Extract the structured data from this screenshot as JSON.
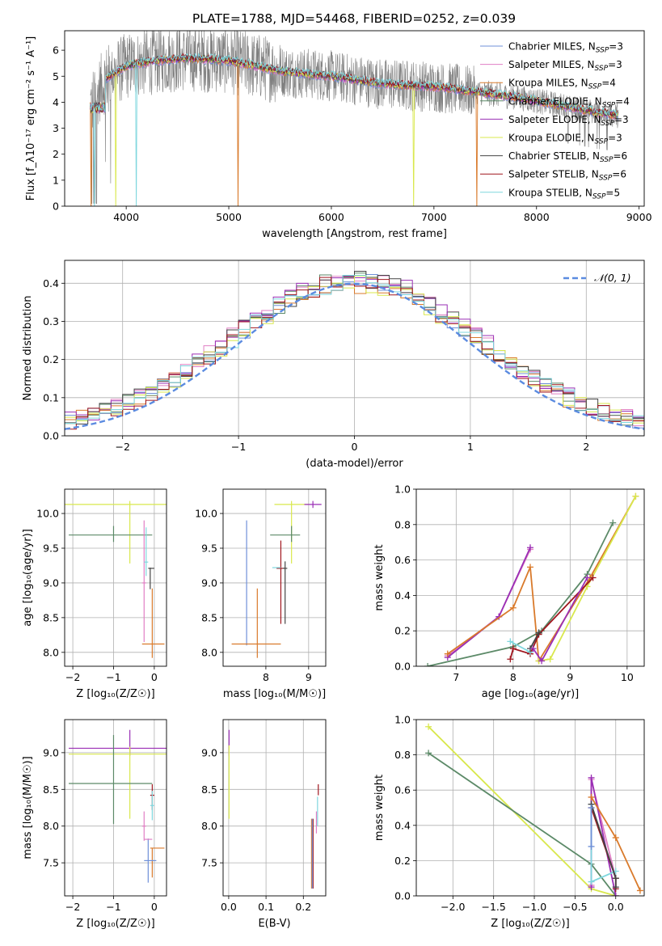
{
  "title": "PLATE=1788, MJD=54468, FIBERID=0252, z=0.039",
  "colors": {
    "Chabrier MILES": "#6f90d8",
    "Salpeter MILES": "#e07fc4",
    "Kroupa MILES": "#d97a2b",
    "Chabrier ELODIE": "#5c8a68",
    "Salpeter ELODIE": "#9a2fb5",
    "Kroupa ELODIE": "#d9e84d",
    "Chabrier STELIB": "#444444",
    "Salpeter STELIB": "#a0161e",
    "Kroupa STELIB": "#7fd7de",
    "spectrum": "#7f7f7f",
    "normal": "#5b8be0"
  },
  "chart_data": [
    {
      "type": "line",
      "xlabel": "wavelength [Angstrom, rest frame]",
      "ylabel": "Flux [f_λ10⁻¹⁷ erg cm⁻² s⁻¹ A⁻¹]",
      "xlim": [
        3400,
        9050
      ],
      "ylim": [
        0,
        6.75
      ],
      "xticks": [
        4000,
        5000,
        6000,
        7000,
        8000,
        9000
      ],
      "yticks": [
        0,
        1,
        2,
        3,
        4,
        5,
        6
      ],
      "grid": false,
      "legend_position": "right",
      "legend": [
        {
          "label": "Chabrier MILES, N",
          "sub": "SSP",
          "suffix": "=3",
          "model": "Chabrier MILES"
        },
        {
          "label": "Salpeter MILES, N",
          "sub": "SSP",
          "suffix": "=3",
          "model": "Salpeter MILES"
        },
        {
          "label": "Kroupa MILES, N",
          "sub": "SSP",
          "suffix": "=4",
          "model": "Kroupa MILES"
        },
        {
          "label": "Chabrier ELODIE, N",
          "sub": "SSP",
          "suffix": "=4",
          "model": "Chabrier ELODIE"
        },
        {
          "label": "Salpeter ELODIE, N",
          "sub": "SSP",
          "suffix": "=3",
          "model": "Salpeter ELODIE"
        },
        {
          "label": "Kroupa ELODIE, N",
          "sub": "SSP",
          "suffix": "=3",
          "model": "Kroupa ELODIE"
        },
        {
          "label": "Chabrier STELIB, N",
          "sub": "SSP",
          "suffix": "=6",
          "model": "Chabrier STELIB"
        },
        {
          "label": "Salpeter STELIB, N",
          "sub": "SSP",
          "suffix": "=6",
          "model": "Salpeter STELIB"
        },
        {
          "label": "Kroupa STELIB, N",
          "sub": "SSP",
          "suffix": "=5",
          "model": "Kroupa STELIB"
        }
      ],
      "spectrum_envelope": {
        "x": [
          3650,
          3800,
          4000,
          4300,
          4600,
          5000,
          5500,
          6000,
          6500,
          7000,
          7400,
          7800,
          8200,
          8600,
          8800
        ],
        "y": [
          3.9,
          4.9,
          5.4,
          5.6,
          5.7,
          5.6,
          5.2,
          5.0,
          4.7,
          4.6,
          4.4,
          4.2,
          3.9,
          3.6,
          3.5
        ]
      },
      "model_drops": [
        {
          "model": "Kroupa MILES",
          "x": [
            3660,
            5090,
            7420
          ]
        },
        {
          "model": "Kroupa ELODIE",
          "x": [
            3900,
            6800
          ]
        },
        {
          "model": "Kroupa STELIB",
          "x": [
            3690,
            4100
          ]
        }
      ]
    },
    {
      "type": "step",
      "xlabel": "(data-model)/error",
      "ylabel": "Normed distribution",
      "xlim": [
        -2.5,
        2.5
      ],
      "ylim": [
        0,
        0.46
      ],
      "xticks": [
        -2,
        -1,
        0,
        1,
        2
      ],
      "yticks": [
        0.0,
        0.1,
        0.2,
        0.3,
        0.4
      ],
      "grid": true,
      "legend_position": "top-right",
      "normal_label": "𝒩(0, 1)",
      "bin_width": 0.1,
      "series_peak": [
        0.395,
        0.405,
        0.385,
        0.4,
        0.41,
        0.39,
        0.4,
        0.395,
        0.392
      ]
    },
    {
      "type": "scatter",
      "xlabel": "Z [log₁₀(Z/Z☉)]",
      "ylabel": "age  [log₁₀(age/yr)]",
      "xlim": [
        -2.2,
        0.3
      ],
      "ylim": [
        7.8,
        10.35
      ],
      "xticks": [
        -2,
        -1,
        0
      ],
      "yticks": [
        8.0,
        8.5,
        9.0,
        9.5,
        10.0
      ],
      "grid": true,
      "errorbars": [
        {
          "model": "Kroupa ELODIE",
          "x": -0.6,
          "xerr": [
            1.9,
            0.9
          ],
          "y": 10.13,
          "yerr": [
            0.85,
            0.05
          ]
        },
        {
          "model": "Chabrier ELODIE",
          "x": -1.0,
          "xerr": [
            1.1,
            0.95
          ],
          "y": 9.69,
          "yerr": [
            0.1,
            0.13
          ]
        },
        {
          "model": "Salpeter MILES",
          "x": -0.25,
          "xerr": [
            0.05,
            0.05
          ],
          "y": 9.0,
          "yerr": [
            0.85,
            0.9
          ]
        },
        {
          "model": "Chabrier STELIB",
          "x": -0.1,
          "xerr": [
            0.05,
            0.1
          ],
          "y": 9.21,
          "yerr": [
            0.3,
            0.01
          ]
        },
        {
          "model": "Kroupa MILES",
          "x": -0.05,
          "xerr": [
            0.25,
            0.3
          ],
          "y": 8.12,
          "yerr": [
            0.2,
            0.8
          ]
        },
        {
          "model": "Kroupa STELIB",
          "x": -0.2,
          "xerr": [
            0.05,
            0.05
          ],
          "y": 9.3,
          "yerr": [
            0.2,
            0.5
          ]
        }
      ]
    },
    {
      "type": "scatter",
      "xlabel": "mass [log₁₀(M/M☉)]",
      "ylabel": "",
      "xlim": [
        7.0,
        9.4
      ],
      "ylim": [
        7.8,
        10.35
      ],
      "xticks": [
        8,
        9
      ],
      "yticks": [
        8.0,
        8.5,
        9.0,
        9.5,
        10.0
      ],
      "grid": true,
      "errorbars": [
        {
          "model": "Kroupa ELODIE",
          "x": 8.6,
          "xerr": [
            0.4,
            0.4
          ],
          "y": 10.13,
          "yerr": [
            0.85,
            0.05
          ]
        },
        {
          "model": "Salpeter ELODIE",
          "x": 9.1,
          "xerr": [
            0.2,
            0.2
          ],
          "y": 10.13,
          "yerr": [
            0.05,
            0.05
          ]
        },
        {
          "model": "Chabrier ELODIE",
          "x": 8.6,
          "xerr": [
            0.5,
            0.2
          ],
          "y": 9.69,
          "yerr": [
            0.1,
            0.13
          ]
        },
        {
          "model": "Chabrier MILES",
          "x": 7.55,
          "xerr": [
            0.0,
            0.0
          ],
          "y": 8.9,
          "yerr": [
            0.8,
            1.0
          ]
        },
        {
          "model": "Kroupa MILES",
          "x": 7.8,
          "xerr": [
            0.6,
            0.55
          ],
          "y": 8.12,
          "yerr": [
            0.2,
            0.8
          ]
        },
        {
          "model": "Salpeter STELIB",
          "x": 8.35,
          "xerr": [
            0.1,
            0.1
          ],
          "y": 9.21,
          "yerr": [
            0.8,
            0.4
          ]
        },
        {
          "model": "Kroupa STELIB",
          "x": 8.25,
          "xerr": [
            0.1,
            0.1
          ],
          "y": 9.22,
          "yerr": [
            0.0,
            0.0
          ]
        },
        {
          "model": "Chabrier STELIB",
          "x": 8.45,
          "xerr": [
            0.05,
            0.05
          ],
          "y": 9.21,
          "yerr": [
            0.8,
            0.1
          ]
        }
      ]
    },
    {
      "type": "line",
      "xlabel": "age  [log₁₀(age/yr)]",
      "ylabel": "mass weight",
      "xlim": [
        6.3,
        10.3
      ],
      "ylim": [
        0.0,
        1.0
      ],
      "xticks": [
        7,
        8,
        9,
        10
      ],
      "yticks": [
        0.0,
        0.2,
        0.4,
        0.6,
        0.8,
        1.0
      ],
      "grid": true,
      "series": [
        {
          "model": "Salpeter MILES",
          "x": [
            6.85,
            7.75,
            8.3
          ],
          "y": [
            0.06,
            0.28,
            0.66
          ]
        },
        {
          "model": "Salpeter ELODIE",
          "x": [
            6.85,
            7.75,
            8.3
          ],
          "y": [
            0.05,
            0.28,
            0.67
          ]
        },
        {
          "model": "Kroupa MILES",
          "x": [
            6.85,
            8.0,
            8.3,
            8.45,
            9.35,
            10.15
          ],
          "y": [
            0.07,
            0.33,
            0.56,
            0.03,
            0.5,
            0.96
          ]
        },
        {
          "model": "Chabrier ELODIE",
          "x": [
            6.5,
            8.0,
            8.5,
            9.3,
            9.75
          ],
          "y": [
            0.0,
            0.11,
            0.2,
            0.52,
            0.81
          ]
        },
        {
          "model": "Kroupa ELODIE",
          "x": [
            8.45,
            8.65,
            9.3,
            10.15
          ],
          "y": [
            0.03,
            0.04,
            0.45,
            0.96
          ]
        },
        {
          "model": "Salpeter STELIB",
          "x": [
            7.95,
            8.0,
            8.3,
            8.45,
            9.4
          ],
          "y": [
            0.04,
            0.1,
            0.07,
            0.18,
            0.5
          ]
        },
        {
          "model": "Kroupa STELIB",
          "x": [
            7.95,
            8.3
          ],
          "y": [
            0.14,
            0.08
          ]
        },
        {
          "model": "Chabrier STELIB",
          "x": [
            8.3,
            8.45
          ],
          "y": [
            0.1,
            0.19
          ]
        },
        {
          "model": "Salpeter ELODIE",
          "x": [
            8.35,
            8.5,
            9.3
          ],
          "y": [
            0.1,
            0.03,
            0.5
          ]
        }
      ]
    },
    {
      "type": "scatter",
      "xlabel": "Z [log₁₀(Z/Z☉)]",
      "ylabel": "mass [log₁₀(M/M☉)]",
      "xlim": [
        -2.2,
        0.3
      ],
      "ylim": [
        7.05,
        9.45
      ],
      "xticks": [
        -2,
        -1,
        0
      ],
      "yticks": [
        7.5,
        8.0,
        8.5,
        9.0
      ],
      "grid": true,
      "errorbars": [
        {
          "model": "Salpeter ELODIE",
          "x": -0.6,
          "xerr": [
            1.5,
            0.9
          ],
          "y": 9.06,
          "yerr": [
            0.1,
            0.25
          ]
        },
        {
          "model": "Kroupa ELODIE",
          "x": -0.6,
          "xerr": [
            1.5,
            0.9
          ],
          "y": 8.98,
          "yerr": [
            0.88,
            0.1
          ]
        },
        {
          "model": "Chabrier ELODIE",
          "x": -1.0,
          "xerr": [
            1.1,
            0.95
          ],
          "y": 8.58,
          "yerr": [
            0.55,
            0.66
          ]
        },
        {
          "model": "Salpeter MILES",
          "x": -0.25,
          "xerr": [
            0.05,
            0.05
          ],
          "y": 8.0,
          "yerr": [
            0.2,
            0.2
          ]
        },
        {
          "model": "Salpeter STELIB",
          "x": -0.05,
          "xerr": [
            0.05,
            0.05
          ],
          "y": 8.42,
          "yerr": [
            0.2,
            0.15
          ]
        },
        {
          "model": "Kroupa STELIB",
          "x": -0.05,
          "xerr": [
            0.05,
            0.05
          ],
          "y": 8.28,
          "yerr": [
            0.2,
            0.2
          ]
        },
        {
          "model": "Kroupa MILES",
          "x": -0.05,
          "xerr": [
            0.05,
            0.3
          ],
          "y": 7.7,
          "yerr": [
            0.4,
            0.0
          ]
        },
        {
          "model": "Chabrier MILES",
          "x": -0.15,
          "xerr": [
            0.1,
            0.2
          ],
          "y": 7.53,
          "yerr": [
            0.3,
            0.3
          ]
        },
        {
          "model": "Salpeter MILES",
          "x": -0.15,
          "xerr": [
            0.1,
            0.1
          ],
          "y": 7.82,
          "yerr": [
            0.0,
            0.0
          ]
        }
      ]
    },
    {
      "type": "scatter",
      "xlabel": "E(B-V)",
      "ylabel": "",
      "xlim": [
        -0.015,
        0.26
      ],
      "ylim": [
        7.05,
        9.45
      ],
      "xticks": [
        0.0,
        0.1,
        0.2
      ],
      "yticks": [
        7.5,
        8.0,
        8.5,
        9.0
      ],
      "grid": true,
      "errorbars": [
        {
          "model": "Salpeter ELODIE",
          "x": 0.001,
          "xerr": [
            0.0,
            0.0
          ],
          "y": 9.06,
          "yerr": [
            0.1,
            0.25
          ]
        },
        {
          "model": "Kroupa ELODIE",
          "x": 0.001,
          "xerr": [
            0.0,
            0.0
          ],
          "y": 8.6,
          "yerr": [
            0.5,
            0.5
          ]
        },
        {
          "model": "Chabrier ELODIE",
          "x": 0.0,
          "xerr": [
            0.0,
            0.0
          ],
          "y": 8.05,
          "yerr": [
            0.0,
            0.0
          ]
        },
        {
          "model": "Kroupa MILES",
          "x": 0.222,
          "xerr": [
            0.0,
            0.0
          ],
          "y": 7.6,
          "yerr": [
            0.45,
            0.5
          ]
        },
        {
          "model": "Salpeter STELIB",
          "x": 0.226,
          "xerr": [
            0.0,
            0.0
          ],
          "y": 7.6,
          "yerr": [
            0.45,
            0.5
          ]
        },
        {
          "model": "Chabrier MILES",
          "x": 0.224,
          "xerr": [
            0.0,
            0.0
          ],
          "y": 7.6,
          "yerr": [
            0.45,
            0.5
          ]
        },
        {
          "model": "Salpeter STELIB",
          "x": 0.24,
          "xerr": [
            0.0,
            0.0
          ],
          "y": 8.42,
          "yerr": [
            0.0,
            0.15
          ]
        },
        {
          "model": "Kroupa STELIB",
          "x": 0.238,
          "xerr": [
            0.0,
            0.0
          ],
          "y": 8.2,
          "yerr": [
            0.2,
            0.2
          ]
        },
        {
          "model": "Salpeter MILES",
          "x": 0.235,
          "xerr": [
            0.0,
            0.0
          ],
          "y": 8.05,
          "yerr": [
            0.15,
            0.15
          ]
        }
      ]
    },
    {
      "type": "line",
      "xlabel": "Z [log₁₀(Z/Z☉)]",
      "ylabel": "mass weight",
      "xlim": [
        -2.45,
        0.35
      ],
      "ylim": [
        0.0,
        1.0
      ],
      "xticks": [
        -2.0,
        -1.5,
        -1.0,
        -0.5,
        0.0
      ],
      "yticks": [
        0.0,
        0.2,
        0.4,
        0.6,
        0.8,
        1.0
      ],
      "grid": true,
      "series": [
        {
          "model": "Kroupa ELODIE",
          "x": [
            -2.3,
            -0.3,
            0.0
          ],
          "y": [
            0.96,
            0.04,
            0.0
          ]
        },
        {
          "model": "Chabrier ELODIE",
          "x": [
            -2.3,
            -0.3,
            0.0
          ],
          "y": [
            0.81,
            0.18,
            0.0
          ]
        },
        {
          "model": "Salpeter MILES",
          "x": [
            -0.3,
            -0.3,
            0.0
          ],
          "y": [
            0.06,
            0.66,
            0.1
          ]
        },
        {
          "model": "Salpeter ELODIE",
          "x": [
            -0.3,
            -0.3,
            0.0
          ],
          "y": [
            0.05,
            0.67,
            0.0
          ]
        },
        {
          "model": "Kroupa MILES",
          "x": [
            -0.3,
            0.0,
            0.3
          ],
          "y": [
            0.56,
            0.33,
            0.03
          ]
        },
        {
          "model": "Salpeter STELIB",
          "x": [
            -0.3,
            0.0,
            0.0
          ],
          "y": [
            0.5,
            0.1,
            0.04
          ]
        },
        {
          "model": "Kroupa STELIB",
          "x": [
            -0.3,
            -0.3,
            0.0
          ],
          "y": [
            0.52,
            0.08,
            0.14
          ]
        },
        {
          "model": "Chabrier STELIB",
          "x": [
            -0.3,
            0.0,
            0.0
          ],
          "y": [
            0.52,
            0.1,
            0.05
          ]
        },
        {
          "model": "Chabrier MILES",
          "x": [
            -0.3,
            -0.3
          ],
          "y": [
            0.28,
            0.5
          ]
        }
      ]
    }
  ]
}
